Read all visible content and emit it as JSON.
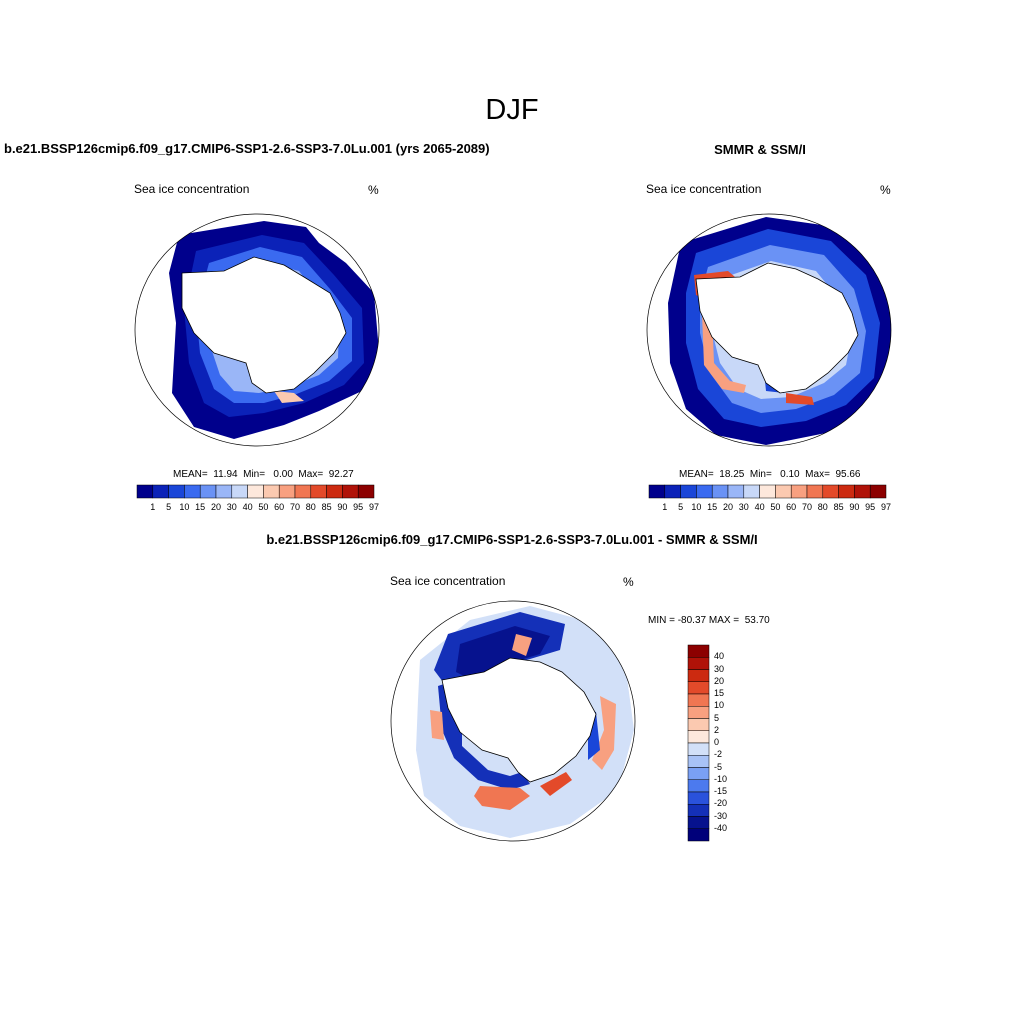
{
  "figure_title": "DJF",
  "panels": {
    "model": {
      "title": "b.e21.BSSP126cmip6.f09_g17.CMIP6-SSP1-2.6-SSP3-7.0Lu.001 (yrs 2065-2089)",
      "variable": "Sea ice concentration",
      "units": "%",
      "stats": "MEAN=  11.94  Min=   0.00  Max=  92.27"
    },
    "obs": {
      "title": "SMMR & SSM/I",
      "variable": "Sea ice concentration",
      "units": "%",
      "stats": "MEAN=  18.25  Min=   0.10  Max=  95.66"
    },
    "diff": {
      "title": "b.e21.BSSP126cmip6.f09_g17.CMIP6-SSP1-2.6-SSP3-7.0Lu.001 - SMMR & SSM/I",
      "variable": "Sea ice concentration",
      "units": "%",
      "stats": "MIN = -80.37 MAX =  53.70"
    }
  },
  "concentration_colorbar": {
    "labels": [
      "1",
      "5",
      "10",
      "15",
      "20",
      "30",
      "40",
      "50",
      "60",
      "70",
      "80",
      "85",
      "90",
      "95",
      "97"
    ],
    "colors": [
      "#00008c",
      "#0b22b8",
      "#1a46d8",
      "#3a6af0",
      "#6a92f5",
      "#9ab6f7",
      "#c8d8f8",
      "#fde8dc",
      "#fbc9b0",
      "#f8a080",
      "#f07652",
      "#e34a2a",
      "#cc2a10",
      "#b01208",
      "#8c0000"
    ]
  },
  "difference_colorbar": {
    "labels": [
      "40",
      "30",
      "20",
      "15",
      "10",
      "5",
      "2",
      "0",
      "-2",
      "-5",
      "-10",
      "-15",
      "-20",
      "-30",
      "-40"
    ],
    "colors": [
      "#8c0000",
      "#b01208",
      "#cc2a10",
      "#e34a2a",
      "#f07652",
      "#f8a080",
      "#fbc9b0",
      "#fde8dc",
      "#d2e0f8",
      "#a8c2f6",
      "#7aa0f4",
      "#4c7aee",
      "#2a52dc",
      "#1430b8",
      "#06128e",
      "#00007a"
    ]
  }
}
